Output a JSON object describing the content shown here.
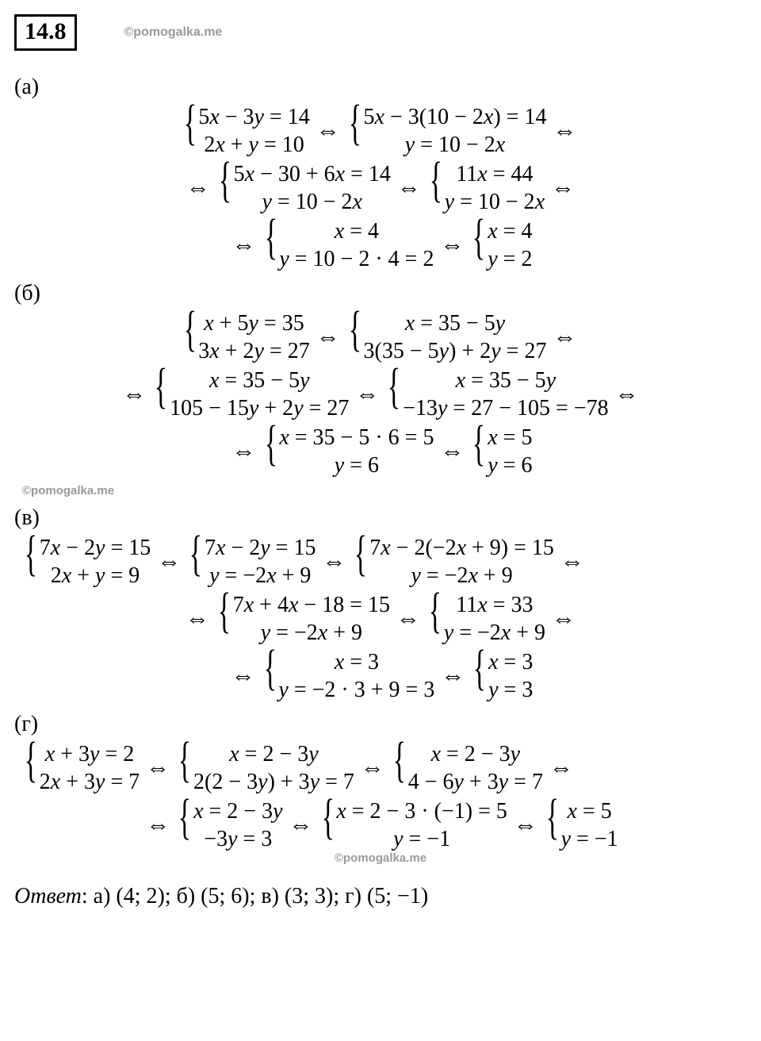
{
  "header": {
    "problem_number": "14.8",
    "watermark": "©pomogalka.me"
  },
  "parts": {
    "a": {
      "label": "(а)",
      "lines": [
        [
          {
            "top": "5<i>x</i> − 3<i>y</i> = 14",
            "bot": "2<i>x</i> + <i>y</i> = 10"
          },
          {
            "top": "5<i>x</i> − 3(10 − 2<i>x</i>) = 14",
            "bot": "<i>y</i> = 10 − 2<i>x</i>"
          }
        ],
        [
          {
            "top": "5<i>x</i> − 30 + 6<i>x</i> = 14",
            "bot": "<i>y</i> = 10 − 2<i>x</i>"
          },
          {
            "top": "11<i>x</i> = 44",
            "bot": "<i>y</i> = 10 − 2<i>x</i>"
          }
        ],
        [
          {
            "top": "<i>x</i> = 4",
            "bot": "<i>y</i> = 10 − 2 · 4 = 2"
          },
          {
            "top": "<i>x</i> = 4",
            "bot": "<i>y</i> = 2"
          }
        ]
      ],
      "trailing_iff": [
        true,
        true,
        false
      ],
      "leading_iff": [
        false,
        true,
        true
      ]
    },
    "b": {
      "label": "(б)",
      "lines": [
        [
          {
            "top": "<i>x</i> + 5<i>y</i> = 35",
            "bot": "3<i>x</i> + 2<i>y</i> = 27"
          },
          {
            "top": "<i>x</i> = 35 − 5<i>y</i>",
            "bot": "3(35 − 5<i>y</i>) + 2<i>y</i> = 27"
          }
        ],
        [
          {
            "top": "<i>x</i> = 35 − 5<i>y</i>",
            "bot": "105 − 15<i>y</i> + 2<i>y</i> = 27"
          },
          {
            "top": "<i>x</i> = 35 − 5<i>y</i>",
            "bot": "−13<i>y</i> = 27 − 105 = −78"
          }
        ],
        [
          {
            "top": "<i>x</i> = 35 − 5 · 6 = 5",
            "bot": "<i>y</i> = 6"
          },
          {
            "top": "<i>x</i> = 5",
            "bot": "<i>y</i> = 6"
          }
        ]
      ],
      "trailing_iff": [
        true,
        true,
        false
      ],
      "leading_iff": [
        false,
        true,
        true
      ]
    },
    "v": {
      "label": "(в)",
      "lines": [
        [
          {
            "top": "7<i>x</i> − 2<i>y</i> = 15",
            "bot": "2<i>x</i> + <i>y</i> = 9"
          },
          {
            "top": "7<i>x</i> − 2<i>y</i> = 15",
            "bot": "<i>y</i> = −2<i>x</i> + 9"
          },
          {
            "top": "7<i>x</i> − 2(−2<i>x</i> + 9) = 15",
            "bot": "<i>y</i> = −2<i>x</i> + 9"
          }
        ],
        [
          {
            "top": "7<i>x</i> + 4<i>x</i> − 18 = 15",
            "bot": "<i>y</i> = −2<i>x</i> + 9"
          },
          {
            "top": "11<i>x</i> = 33",
            "bot": "<i>y</i> = −2<i>x</i> + 9"
          }
        ],
        [
          {
            "top": "<i>x</i> = 3",
            "bot": "<i>y</i> = −2 · 3 + 9 = 3"
          },
          {
            "top": "<i>x</i> = 3",
            "bot": "<i>y</i> = 3"
          }
        ]
      ],
      "trailing_iff": [
        true,
        true,
        false
      ],
      "leading_iff": [
        false,
        true,
        true
      ]
    },
    "g": {
      "label": "(г)",
      "lines": [
        [
          {
            "top": "<i>x</i> + 3<i>y</i> = 2",
            "bot": "2<i>x</i> + 3<i>y</i> = 7"
          },
          {
            "top": "<i>x</i> = 2 − 3<i>y</i>",
            "bot": "2(2 − 3<i>y</i>) + 3<i>y</i> = 7"
          },
          {
            "top": "<i>x</i> = 2 − 3<i>y</i>",
            "bot": "4 − 6<i>y</i> + 3<i>y</i> = 7"
          }
        ],
        [
          {
            "top": "<i>x</i> = 2 − 3<i>y</i>",
            "bot": "−3<i>y</i> = 3"
          },
          {
            "top": "<i>x</i> = 2 − 3 · (−1) = 5",
            "bot": "<i>y</i> = −1"
          },
          {
            "top": "<i>x</i> = 5",
            "bot": "<i>y</i> = −1"
          }
        ]
      ],
      "trailing_iff": [
        true,
        false
      ],
      "leading_iff": [
        false,
        true
      ]
    }
  },
  "watermarks": {
    "mid1": "©pomogalka.me",
    "mid2": "©pomogalka.me"
  },
  "answer": {
    "label": "Ответ",
    "text": ": а) (4; 2); б) (5; 6); в) (3; 3); г) (5; −1)"
  },
  "style": {
    "text_color": "#000000",
    "watermark_color": "#9a9a9a",
    "background": "#ffffff",
    "iff_symbol": "⇔",
    "brace_symbol": "{",
    "font_size_math": 28,
    "font_size_brace": 62
  }
}
